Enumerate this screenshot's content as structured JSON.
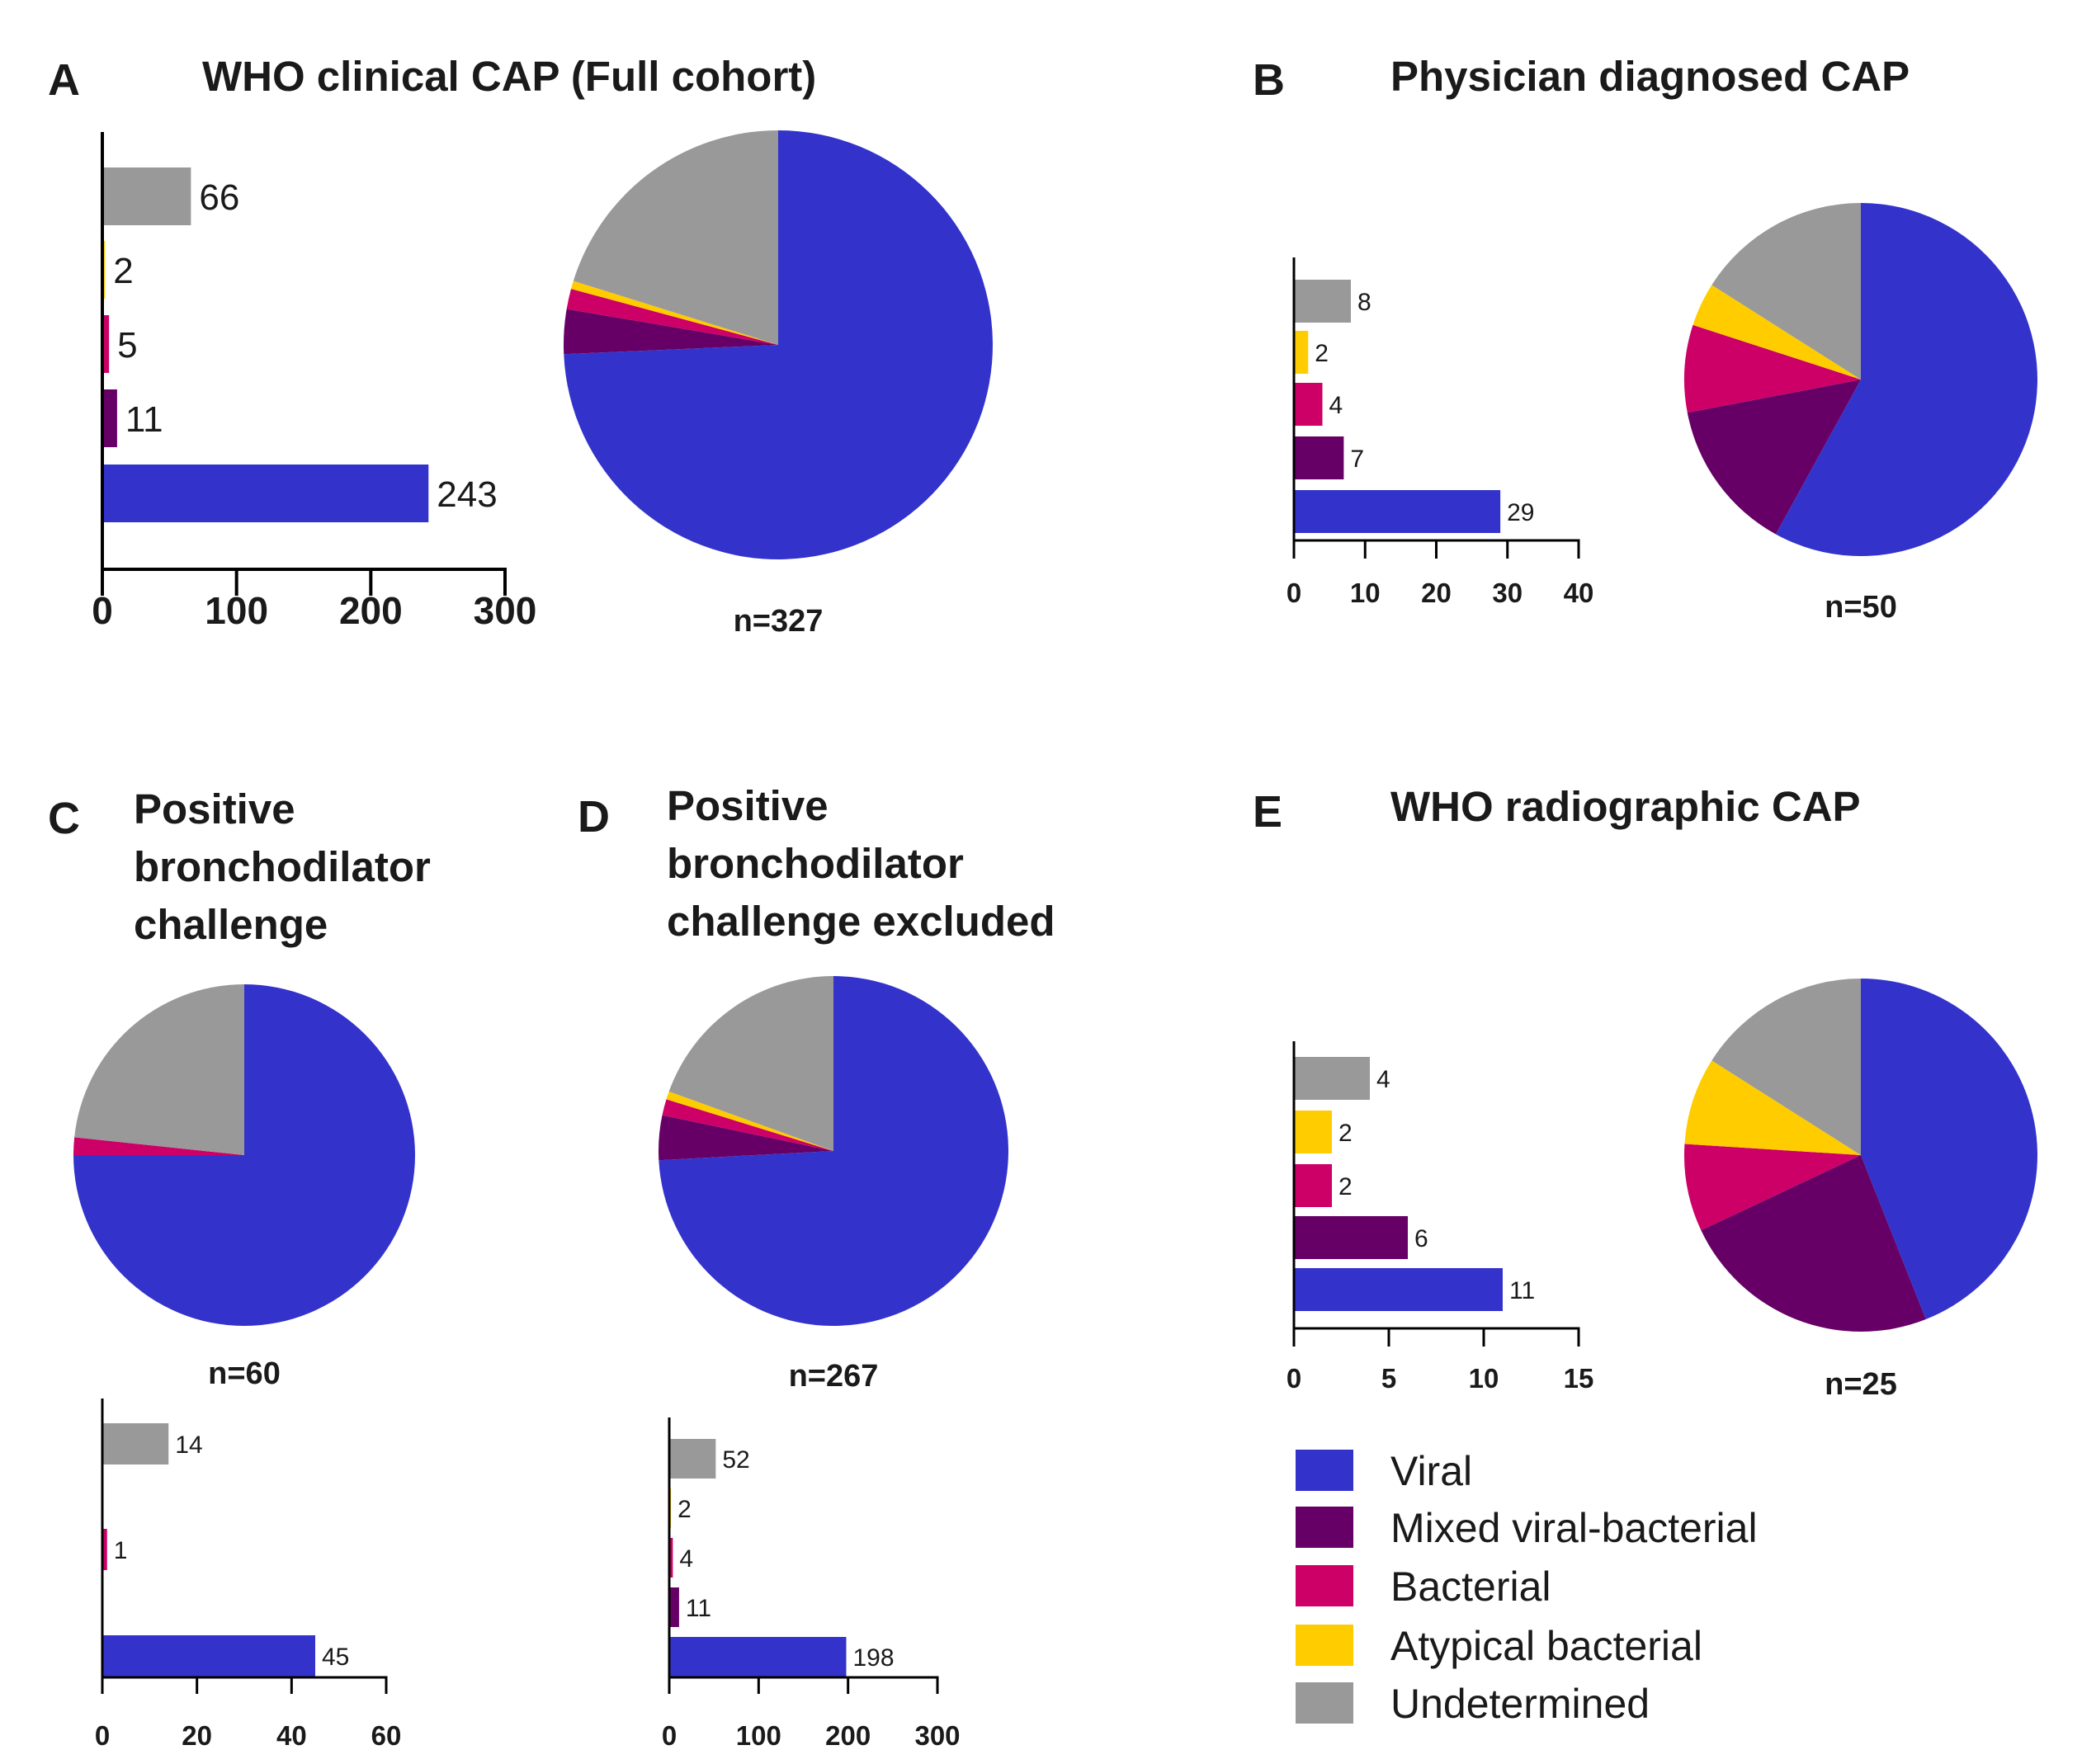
{
  "colors": {
    "Viral": "#3333CC",
    "Mixed viral-bacterial": "#660066",
    "Bacterial": "#CC0066",
    "Atypical bacterial": "#FFCC00",
    "Undetermined": "#999999"
  },
  "legend": {
    "items": [
      "Viral",
      "Mixed viral-bacterial",
      "Bacterial",
      "Atypical bacterial",
      "Undetermined"
    ]
  },
  "chart_data": [
    {
      "id": "A",
      "letter": "A",
      "title_lines": [
        "WHO clinical CAP (Full cohort)"
      ],
      "type": "bar",
      "orientation": "horizontal",
      "categories": [
        "Undetermined",
        "Atypical bacterial",
        "Bacterial",
        "Mixed viral-bacterial",
        "Viral"
      ],
      "values": [
        66,
        2,
        5,
        11,
        243
      ],
      "xlim": [
        0,
        300
      ],
      "xticks": [
        "0",
        "100",
        "200",
        "300"
      ],
      "pie": {
        "type": "pie",
        "label": "n=327",
        "values": [
          243,
          11,
          5,
          2,
          66
        ]
      }
    },
    {
      "id": "B",
      "letter": "B",
      "title_lines": [
        "Physician diagnosed CAP"
      ],
      "type": "bar",
      "orientation": "horizontal",
      "categories": [
        "Undetermined",
        "Atypical bacterial",
        "Bacterial",
        "Mixed viral-bacterial",
        "Viral"
      ],
      "values": [
        8,
        2,
        4,
        7,
        29
      ],
      "xlim": [
        0,
        40
      ],
      "xticks": [
        "0",
        "10",
        "20",
        "30",
        "40"
      ],
      "pie": {
        "type": "pie",
        "label": "n=50",
        "values": [
          29,
          7,
          4,
          2,
          8
        ]
      }
    },
    {
      "id": "C",
      "letter": "C",
      "title_lines": [
        "Positive",
        "bronchodilator",
        "challenge"
      ],
      "type": "bar",
      "orientation": "horizontal",
      "categories": [
        "Undetermined",
        "Bacterial",
        "Viral"
      ],
      "values": [
        14,
        1,
        45
      ],
      "xlim": [
        0,
        60
      ],
      "xticks": [
        "0",
        "20",
        "40",
        "60"
      ],
      "pie": {
        "type": "pie",
        "label": "n=60",
        "values": [
          45,
          0,
          1,
          0,
          14
        ]
      }
    },
    {
      "id": "D",
      "letter": "D",
      "title_lines": [
        "Positive",
        "bronchodilator",
        "challenge excluded"
      ],
      "type": "bar",
      "orientation": "horizontal",
      "categories": [
        "Undetermined",
        "Atypical bacterial",
        "Bacterial",
        "Mixed viral-bacterial",
        "Viral"
      ],
      "values": [
        52,
        2,
        4,
        11,
        198
      ],
      "xlim": [
        0,
        300
      ],
      "xticks": [
        "0",
        "100",
        "200",
        "300"
      ],
      "pie": {
        "type": "pie",
        "label": "n=267",
        "values": [
          198,
          11,
          4,
          2,
          52
        ]
      }
    },
    {
      "id": "E",
      "letter": "E",
      "title_lines": [
        "WHO radiographic CAP"
      ],
      "type": "bar",
      "orientation": "horizontal",
      "categories": [
        "Undetermined",
        "Atypical bacterial",
        "Bacterial",
        "Mixed viral-bacterial",
        "Viral"
      ],
      "values": [
        4,
        2,
        2,
        6,
        11
      ],
      "xlim": [
        0,
        15
      ],
      "xticks": [
        "0",
        "5",
        "10",
        "15"
      ],
      "pie": {
        "type": "pie",
        "label": "n=25",
        "values": [
          11,
          6,
          2,
          2,
          4
        ]
      }
    }
  ]
}
